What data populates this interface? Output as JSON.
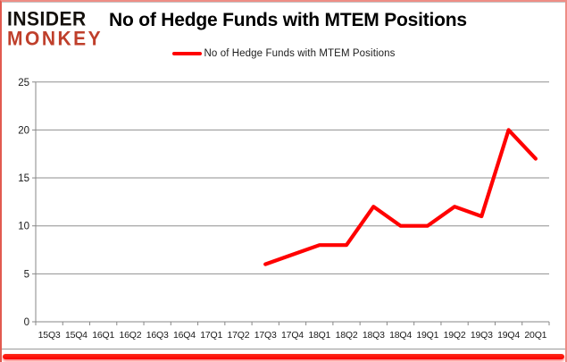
{
  "logo": {
    "line1": "INSIDER",
    "line2": "MONKEY",
    "line1_color": "#14100c",
    "line2_color": "#bf3f2b"
  },
  "header": {
    "title": "No of Hedge Funds with MTEM Positions"
  },
  "legend": {
    "label": "No of Hedge Funds with MTEM Positions",
    "line_color": "#ff0000"
  },
  "chart_data": {
    "type": "line",
    "title": "No of Hedge Funds with MTEM Positions",
    "categories": [
      "15Q3",
      "15Q4",
      "16Q1",
      "16Q2",
      "16Q3",
      "16Q4",
      "17Q1",
      "17Q2",
      "17Q3",
      "17Q4",
      "18Q1",
      "18Q2",
      "18Q3",
      "18Q4",
      "19Q1",
      "19Q2",
      "19Q3",
      "19Q4",
      "20Q1"
    ],
    "series": [
      {
        "name": "No of Hedge Funds with MTEM Positions",
        "color": "#ff0000",
        "values": [
          null,
          null,
          null,
          null,
          null,
          null,
          null,
          null,
          6,
          7,
          8,
          8,
          12,
          10,
          10,
          12,
          11,
          20,
          17
        ]
      }
    ],
    "ylim": [
      0,
      25
    ],
    "yticks": [
      0,
      5,
      10,
      15,
      20,
      25
    ],
    "grid": "horizontal",
    "legend_position": "top-center",
    "xlabel": "",
    "ylabel": ""
  },
  "style": {
    "axis_color": "#878787",
    "grid_color": "#8f8f8f",
    "tick_label_color": "#1a1a1a",
    "frame_color": "#e25a4f",
    "bottom_bar_color": "#fb0000",
    "background": "#ffffff"
  }
}
